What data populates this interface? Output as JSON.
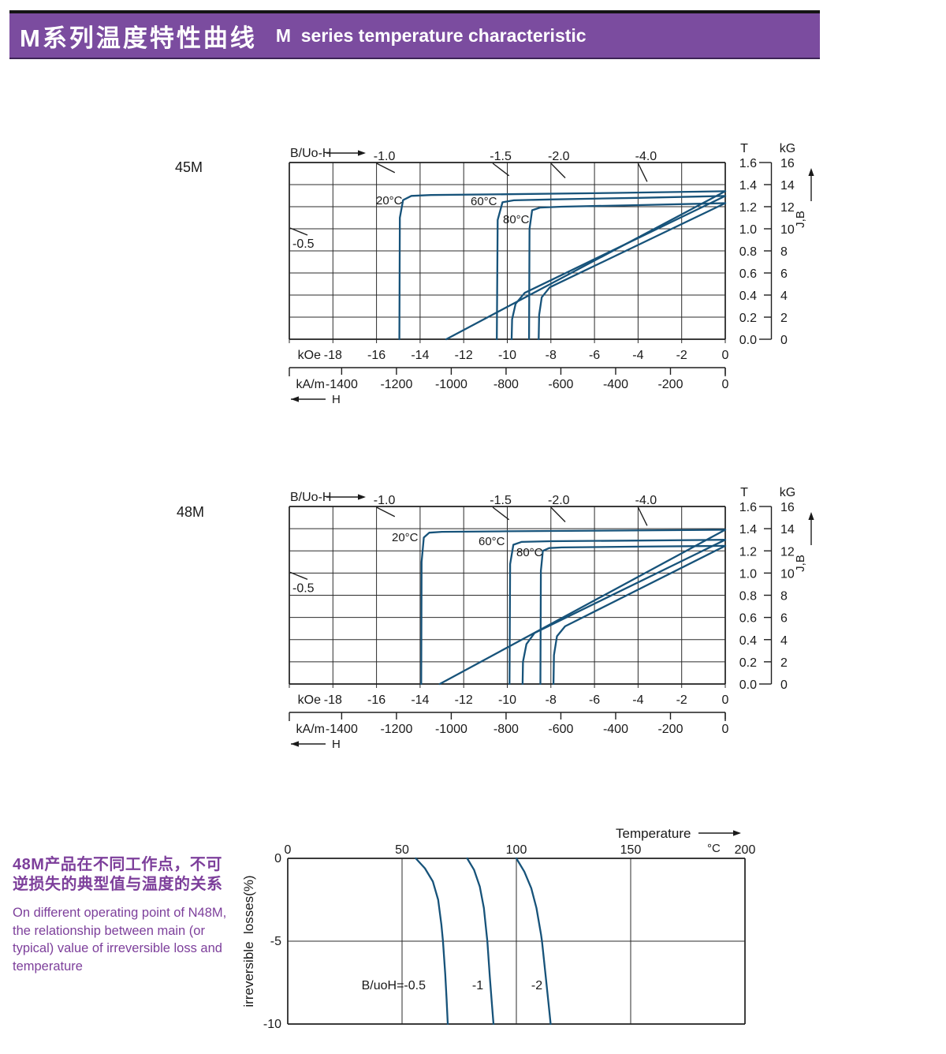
{
  "header": {
    "title_zh": "M系列温度特性曲线",
    "title_en": "M  series temperature characteristic"
  },
  "colors": {
    "banner": "#7b4c9f",
    "curve": "#17537a",
    "grid": "#2b2b2b",
    "note_text": "#7d3f9b"
  },
  "note": {
    "zh_lines": [
      "48M产品在不同工作点，不可",
      "逆损失的典型值与温度的关系"
    ],
    "en_lines": [
      "On different operating point of N48M,",
      "the relationship between main (or",
      "typical) value of irreversible loss and",
      "temperature"
    ]
  },
  "chart_data": [
    {
      "type": "line",
      "grade": "45M",
      "title": "45M demagnetization curves vs temperature",
      "x_axis": {
        "unit": "kOe",
        "ticks": [
          -18,
          -16,
          -14,
          -12,
          -10,
          -8,
          -6,
          -4,
          -2,
          0
        ],
        "range": [
          -20,
          0
        ],
        "secondary_unit": "kA/m",
        "secondary_ticks": [
          -1400,
          -1200,
          -1000,
          -800,
          -600,
          -400,
          -200,
          0
        ],
        "secondary_range": [
          -1591,
          0
        ],
        "arrow_label": "H"
      },
      "y_axis": {
        "left_unit": "T",
        "left_ticks": [
          "1.6",
          "1.4",
          "1.2",
          "1.0",
          "0.8",
          "0.6",
          "0.4",
          "0.2",
          "0.0"
        ],
        "right_unit": "kG",
        "right_ticks": [
          16,
          14,
          12,
          10,
          8,
          6,
          4,
          2,
          0
        ],
        "range": [
          0,
          1.6
        ],
        "arrow_label": "J,B"
      },
      "load_lines": {
        "axis_label": "B/Uo-H",
        "top": [
          {
            "label": "-1.0",
            "slope": 1.0
          },
          {
            "label": "-1.5",
            "slope": 1.5
          },
          {
            "label": "-2.0",
            "slope": 2.0
          },
          {
            "label": "-4.0",
            "slope": 4.0
          }
        ],
        "left": {
          "label": "-0.5",
          "slope": 0.5
        }
      },
      "series": [
        {
          "name": "20°C",
          "J": [
            [
              0,
              1.34
            ],
            [
              -5,
              1.325
            ],
            [
              -10,
              1.313
            ],
            [
              -13.5,
              1.306
            ],
            [
              -14.4,
              1.298
            ],
            [
              -14.78,
              1.26
            ],
            [
              -14.93,
              1.1
            ],
            [
              -14.95,
              0
            ]
          ],
          "B": [
            [
              0,
              1.34
            ],
            [
              -12.8,
              0
            ]
          ]
        },
        {
          "name": "60°C",
          "J": [
            [
              0,
              1.297
            ],
            [
              -4,
              1.28
            ],
            [
              -8,
              1.266
            ],
            [
              -9.7,
              1.258
            ],
            [
              -10.22,
              1.24
            ],
            [
              -10.44,
              1.08
            ],
            [
              -10.48,
              0
            ]
          ],
          "B": [
            [
              0,
              1.297
            ],
            [
              -9.2,
              0.42
            ],
            [
              -9.62,
              0.32
            ],
            [
              -9.78,
              0.18
            ],
            [
              -9.8,
              0
            ]
          ]
        },
        {
          "name": "80°C",
          "J": [
            [
              0,
              1.232
            ],
            [
              -4,
              1.214
            ],
            [
              -7.5,
              1.2
            ],
            [
              -8.5,
              1.192
            ],
            [
              -8.86,
              1.168
            ],
            [
              -8.98,
              1.0
            ],
            [
              -9.0,
              0
            ]
          ],
          "B": [
            [
              0,
              1.232
            ],
            [
              -8.05,
              0.47
            ],
            [
              -8.42,
              0.38
            ],
            [
              -8.54,
              0.22
            ],
            [
              -8.56,
              0
            ]
          ]
        }
      ]
    },
    {
      "type": "line",
      "grade": "48M",
      "title": "48M demagnetization curves vs temperature",
      "x_axis": {
        "unit": "kOe",
        "ticks": [
          -18,
          -16,
          -14,
          -12,
          -10,
          -8,
          -6,
          -4,
          -2,
          0
        ],
        "range": [
          -20,
          0
        ],
        "secondary_unit": "kA/m",
        "secondary_ticks": [
          -1400,
          -1200,
          -1000,
          -800,
          -600,
          -400,
          -200,
          0
        ],
        "secondary_range": [
          -1591,
          0
        ],
        "arrow_label": "H"
      },
      "y_axis": {
        "left_unit": "T",
        "left_ticks": [
          "1.6",
          "1.4",
          "1.2",
          "1.0",
          "0.8",
          "0.6",
          "0.4",
          "0.2",
          "0.0"
        ],
        "right_unit": "kG",
        "right_ticks": [
          16,
          14,
          12,
          10,
          8,
          6,
          4,
          2,
          0
        ],
        "range": [
          0,
          1.6
        ],
        "arrow_label": "J,B"
      },
      "load_lines": {
        "axis_label": "B/Uo-H",
        "top": [
          {
            "label": "-1.0",
            "slope": 1.0
          },
          {
            "label": "-1.5",
            "slope": 1.5
          },
          {
            "label": "-2.0",
            "slope": 2.0
          },
          {
            "label": "-4.0",
            "slope": 4.0
          }
        ],
        "left": {
          "label": "-0.5",
          "slope": 0.5
        }
      },
      "series": [
        {
          "name": "20°C",
          "J": [
            [
              0,
              1.39
            ],
            [
              -5,
              1.383
            ],
            [
              -10,
              1.377
            ],
            [
              -13.0,
              1.372
            ],
            [
              -13.58,
              1.364
            ],
            [
              -13.83,
              1.32
            ],
            [
              -13.93,
              1.1
            ],
            [
              -13.95,
              0
            ]
          ],
          "B": [
            [
              0,
              1.39
            ],
            [
              -13.1,
              0
            ]
          ]
        },
        {
          "name": "60°C",
          "J": [
            [
              0,
              1.3
            ],
            [
              -4,
              1.293
            ],
            [
              -8,
              1.287
            ],
            [
              -9.35,
              1.281
            ],
            [
              -9.72,
              1.255
            ],
            [
              -9.87,
              1.08
            ],
            [
              -9.9,
              0
            ]
          ],
          "B": [
            [
              0,
              1.3
            ],
            [
              -8.75,
              0.46
            ],
            [
              -9.12,
              0.36
            ],
            [
              -9.28,
              0.2
            ],
            [
              -9.3,
              0
            ]
          ]
        },
        {
          "name": "80°C",
          "J": [
            [
              0,
              1.245
            ],
            [
              -4,
              1.238
            ],
            [
              -7.5,
              1.231
            ],
            [
              -8.08,
              1.225
            ],
            [
              -8.37,
              1.2
            ],
            [
              -8.46,
              1.02
            ],
            [
              -8.48,
              0
            ]
          ],
          "B": [
            [
              0,
              1.245
            ],
            [
              -7.35,
              0.52
            ],
            [
              -7.72,
              0.43
            ],
            [
              -7.86,
              0.26
            ],
            [
              -7.88,
              0
            ]
          ]
        }
      ]
    },
    {
      "type": "line",
      "title": "Irreversible losses vs temperature (N48M)",
      "x_axis": {
        "label": "Temperature",
        "unit": "°C",
        "ticks": [
          0,
          50,
          100,
          150,
          200
        ],
        "range": [
          0,
          200
        ]
      },
      "y_axis": {
        "label": "irreversible  losses(%)",
        "ticks": [
          0,
          -5,
          -10
        ],
        "range": [
          -10,
          0
        ]
      },
      "series": [
        {
          "name": "B/uoH=-0.5",
          "points": [
            [
              56,
              0
            ],
            [
              60,
              -0.6
            ],
            [
              63.5,
              -1.4
            ],
            [
              65.8,
              -2.5
            ],
            [
              67.2,
              -4
            ],
            [
              67.9,
              -5
            ],
            [
              68.9,
              -7
            ],
            [
              69.5,
              -8.5
            ],
            [
              70,
              -10
            ]
          ]
        },
        {
          "name": "-1",
          "points": [
            [
              78.5,
              0
            ],
            [
              81.5,
              -0.7
            ],
            [
              84,
              -1.7
            ],
            [
              85.8,
              -3
            ],
            [
              87,
              -4.6
            ],
            [
              87.3,
              -5
            ],
            [
              88.4,
              -7.2
            ],
            [
              89.3,
              -8.8
            ],
            [
              90,
              -10
            ]
          ]
        },
        {
          "name": "-2",
          "points": [
            [
              100,
              0
            ],
            [
              103.5,
              -0.8
            ],
            [
              106.5,
              -1.8
            ],
            [
              108.8,
              -3
            ],
            [
              110.8,
              -4.6
            ],
            [
              111.2,
              -5
            ],
            [
              112.9,
              -7.2
            ],
            [
              114.1,
              -8.8
            ],
            [
              115,
              -10
            ]
          ]
        }
      ]
    }
  ]
}
